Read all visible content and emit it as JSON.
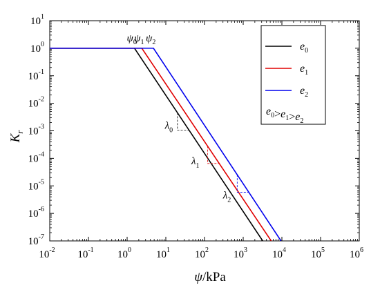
{
  "chart_data": {
    "type": "line",
    "xscale": "log",
    "yscale": "log",
    "xlabel": "ψ/kPa",
    "xlabel_symbol": "ψ",
    "xlabel_unit": "/kPa",
    "ylabel": "Kr",
    "ylabel_symbol": "K",
    "ylabel_subscript": "r",
    "xlim": [
      0.01,
      1000000
    ],
    "ylim": [
      1e-07,
      10
    ],
    "x_ticks": [
      {
        "base": "10",
        "exp": "-2",
        "value": 0.01
      },
      {
        "base": "10",
        "exp": "-1",
        "value": 0.1
      },
      {
        "base": "10",
        "exp": "0",
        "value": 1
      },
      {
        "base": "10",
        "exp": "1",
        "value": 10
      },
      {
        "base": "10",
        "exp": "2",
        "value": 100
      },
      {
        "base": "10",
        "exp": "3",
        "value": 1000
      },
      {
        "base": "10",
        "exp": "4",
        "value": 10000
      },
      {
        "base": "10",
        "exp": "5",
        "value": 100000
      },
      {
        "base": "10",
        "exp": "6",
        "value": 1000000
      }
    ],
    "y_ticks": [
      {
        "base": "10",
        "exp": "1",
        "value": 10
      },
      {
        "base": "10",
        "exp": "0",
        "value": 1
      },
      {
        "base": "10",
        "exp": "-1",
        "value": 0.1
      },
      {
        "base": "10",
        "exp": "-2",
        "value": 0.01
      },
      {
        "base": "10",
        "exp": "-3",
        "value": 0.001
      },
      {
        "base": "10",
        "exp": "-4",
        "value": 0.0001
      },
      {
        "base": "10",
        "exp": "-5",
        "value": 1e-05
      },
      {
        "base": "10",
        "exp": "-6",
        "value": 1e-06
      },
      {
        "base": "10",
        "exp": "-7",
        "value": 1e-07
      }
    ],
    "series": [
      {
        "name": "e0",
        "symbol": "e",
        "sub": "0",
        "color": "#000000",
        "points": [
          [
            0.01,
            1
          ],
          [
            1.55,
            1
          ],
          [
            3200,
            1e-07
          ]
        ]
      },
      {
        "name": "e1",
        "symbol": "e",
        "sub": "1",
        "color": "#e00000",
        "points": [
          [
            0.01,
            1
          ],
          [
            2.4,
            1
          ],
          [
            5300,
            1e-07
          ]
        ]
      },
      {
        "name": "e2",
        "symbol": "e",
        "sub": "2",
        "color": "#0000ee",
        "points": [
          [
            0.01,
            1
          ],
          [
            4.8,
            1
          ],
          [
            9500,
            1e-07
          ]
        ]
      }
    ],
    "annotations": {
      "psi_labels": [
        {
          "symbol": "ψ",
          "sub": "0",
          "x": 1.55
        },
        {
          "symbol": "ψ",
          "sub": "1",
          "x": 2.4
        },
        {
          "symbol": "ψ",
          "sub": "2",
          "x": 4.8
        }
      ],
      "slope_labels": [
        {
          "symbol": "λ",
          "sub": "0",
          "x": 12,
          "y": 0.0012
        },
        {
          "symbol": "λ",
          "sub": "1",
          "x": 58,
          "y": 6e-05
        },
        {
          "symbol": "λ",
          "sub": "2",
          "x": 380,
          "y": 3.5e-06
        }
      ],
      "slope_triangles": [
        {
          "x1": 20,
          "x2": 40,
          "series": 0
        },
        {
          "x1": 120,
          "x2": 240,
          "series": 1
        },
        {
          "x1": 700,
          "x2": 1400,
          "series": 2
        }
      ]
    },
    "legend": {
      "placement": "top-right",
      "note_parts": [
        {
          "t": "e",
          "s": "0"
        },
        {
          "t": ">"
        },
        {
          "t": "e",
          "s": "1"
        },
        {
          "t": ">"
        },
        {
          "t": "e",
          "s": "2"
        }
      ]
    },
    "grid": false
  }
}
